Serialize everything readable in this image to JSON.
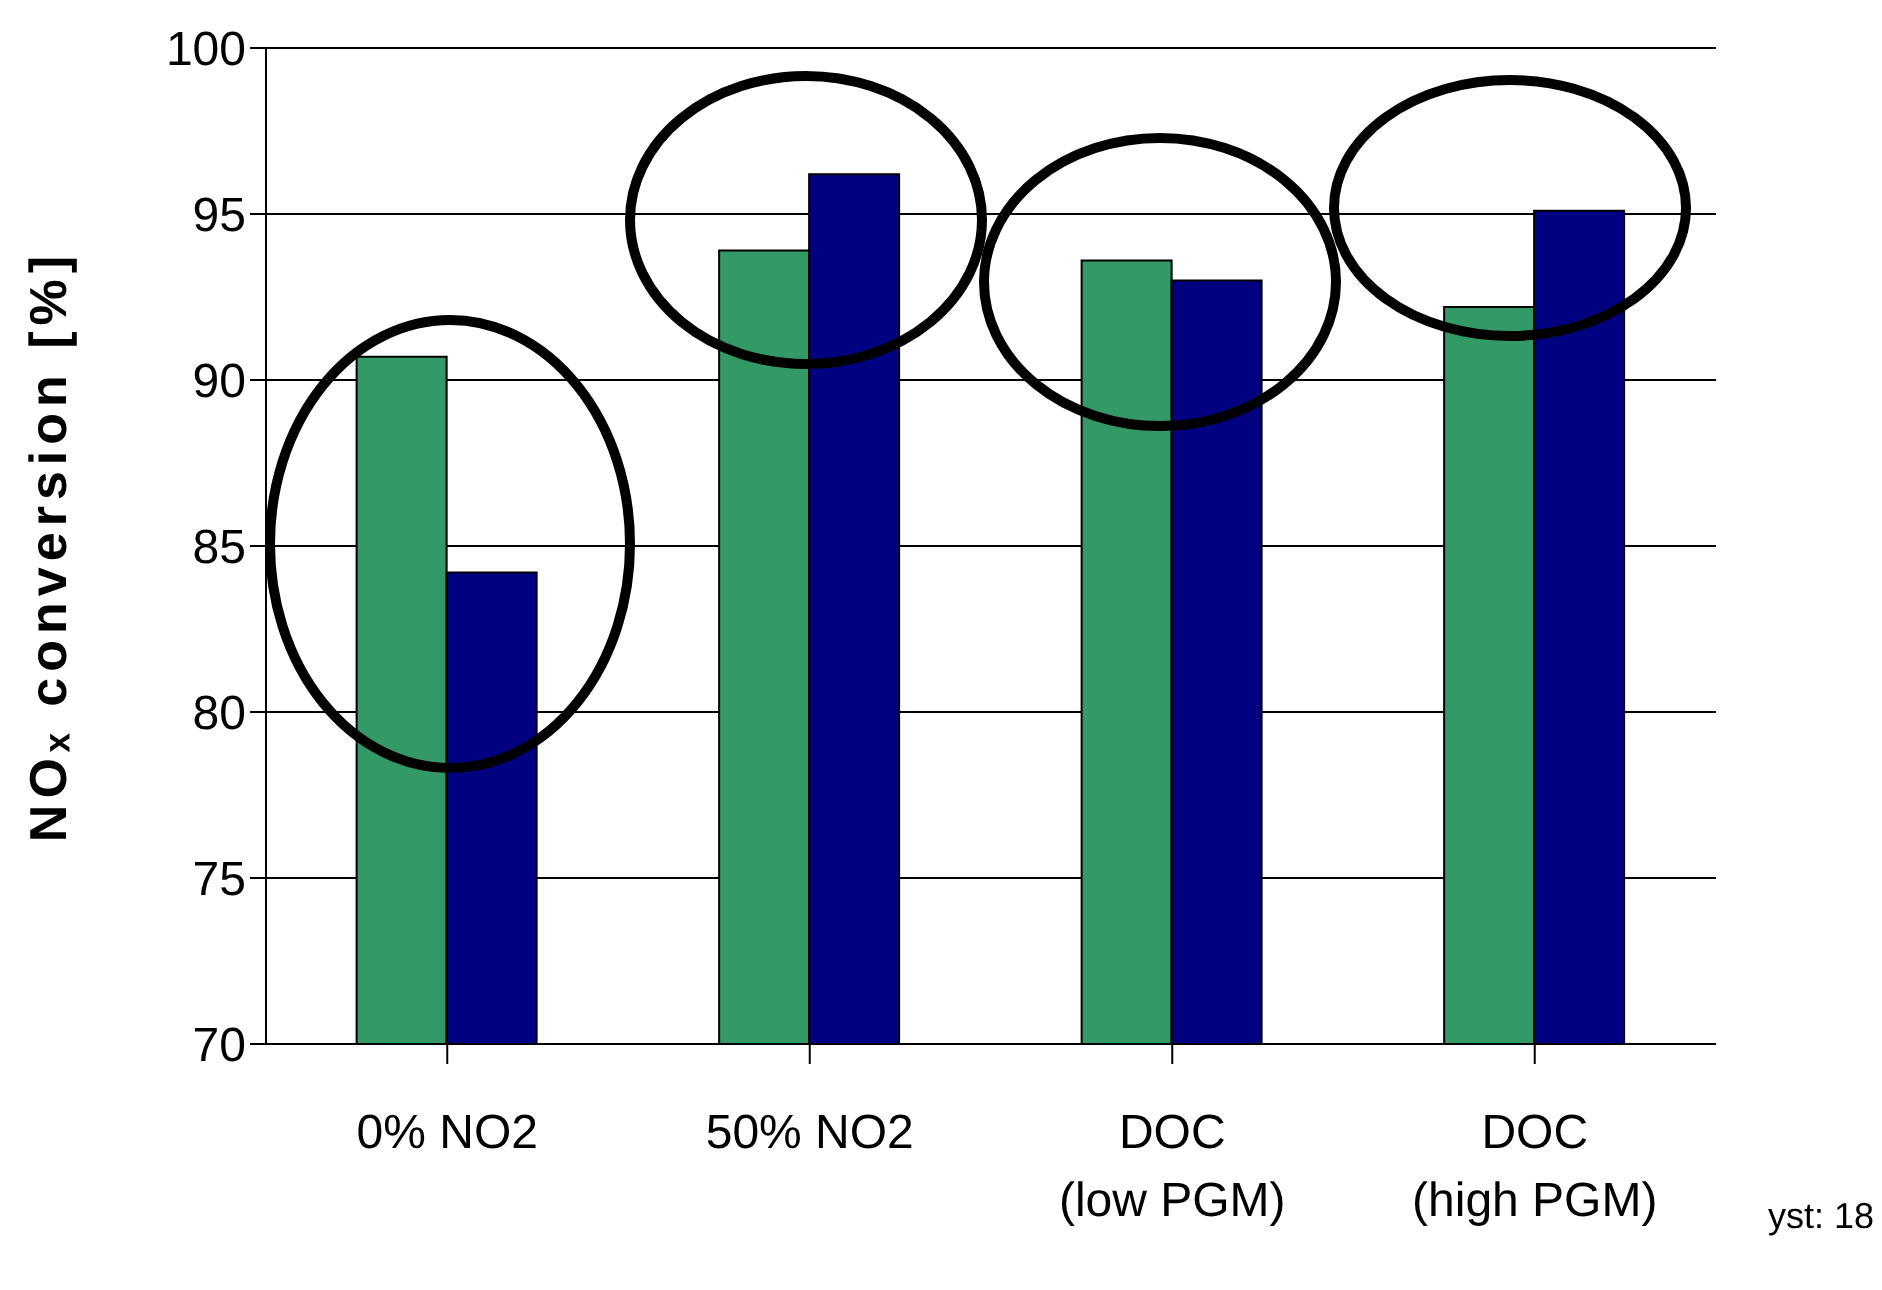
{
  "chart_data": {
    "type": "bar",
    "ylabel": "NOₓ conversion [%]",
    "categories": [
      "0% NO2",
      "50% NO2",
      "DOC\n(low PGM)",
      "DOC\n(high PGM)"
    ],
    "series": [
      {
        "color": "#339966",
        "values": [
          90.7,
          93.9,
          93.6,
          92.2
        ]
      },
      {
        "color": "#000080",
        "values": [
          84.2,
          96.2,
          93.0,
          95.1
        ]
      }
    ],
    "ylim": [
      70,
      100
    ],
    "yticks": [
      70,
      75,
      80,
      85,
      90,
      95,
      100
    ],
    "grid": "y",
    "legend": false,
    "annotations": [
      "yst: 18"
    ]
  }
}
